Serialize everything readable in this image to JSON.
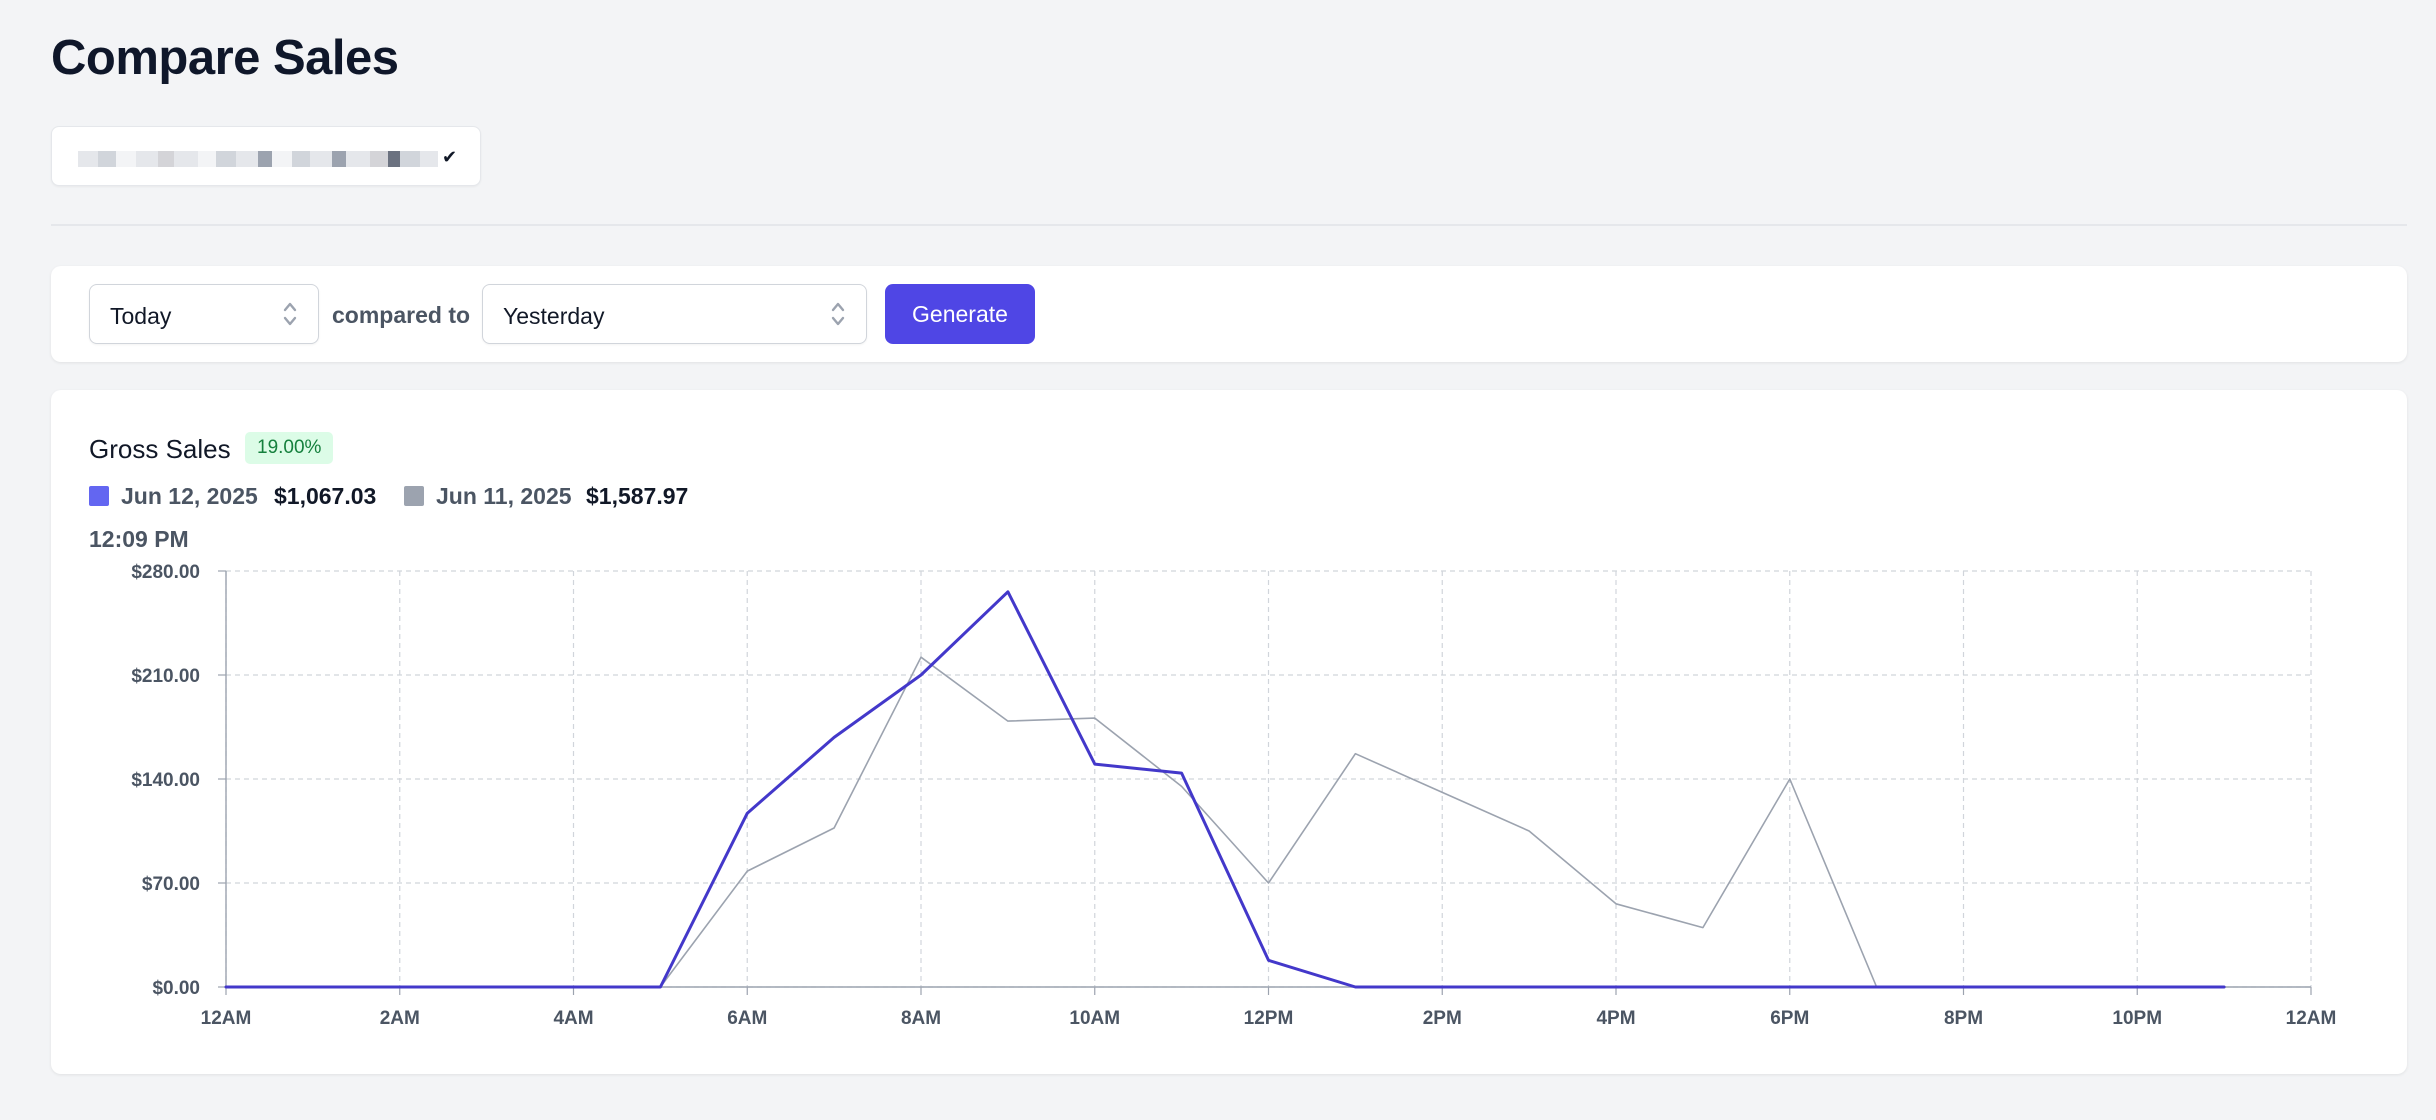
{
  "page": {
    "title": "Compare Sales",
    "store_selector": {
      "check_mark": "✔"
    }
  },
  "controls": {
    "period": {
      "value": "Today"
    },
    "compared_label": "compared to",
    "comparison": {
      "value": "Yesterday"
    },
    "generate_label": "Generate"
  },
  "chart_panel": {
    "metric_title": "Gross Sales",
    "change_badge": "19.00%",
    "legend": [
      {
        "date": "Jun 12, 2025",
        "total": "$1,067.03",
        "color": "#6366f1"
      },
      {
        "date": "Jun 11, 2025",
        "total": "$1,587.97",
        "color": "#9ca3af"
      }
    ],
    "current_time": "12:09 PM"
  },
  "chart_data": {
    "type": "line",
    "x_labels": [
      "12AM",
      "2AM",
      "4AM",
      "6AM",
      "8AM",
      "10AM",
      "12PM",
      "2PM",
      "4PM",
      "6PM",
      "8PM",
      "10PM",
      "12AM"
    ],
    "y_labels": [
      "$0.00",
      "$70.00",
      "$140.00",
      "$210.00",
      "$280.00"
    ],
    "ylim": [
      0,
      280
    ],
    "xlim": [
      0,
      24
    ],
    "grid": true,
    "series": [
      {
        "name": "Jun 12, 2025",
        "color": "#4338ca",
        "x": [
          0,
          1,
          2,
          3,
          4,
          5,
          6,
          7,
          8,
          9,
          10,
          11,
          12,
          13,
          14,
          15,
          16,
          17,
          18,
          19,
          20,
          21,
          22,
          23
        ],
        "values": [
          0,
          0,
          0,
          0,
          0,
          0,
          117,
          168,
          210,
          266,
          150,
          144,
          18,
          0,
          0,
          0,
          0,
          0,
          0,
          0,
          0,
          0,
          0,
          0
        ]
      },
      {
        "name": "Jun 11, 2025",
        "color": "#9ca3af",
        "x": [
          0,
          1,
          2,
          3,
          4,
          5,
          6,
          7,
          8,
          9,
          10,
          11,
          12,
          13,
          14,
          15,
          16,
          17,
          18,
          19,
          20,
          21,
          22,
          23
        ],
        "values": [
          0,
          0,
          0,
          0,
          0,
          0,
          78,
          107,
          222,
          179,
          181,
          135,
          70,
          157,
          131,
          105,
          56,
          40,
          140,
          0,
          0,
          0,
          0,
          0
        ]
      }
    ]
  }
}
